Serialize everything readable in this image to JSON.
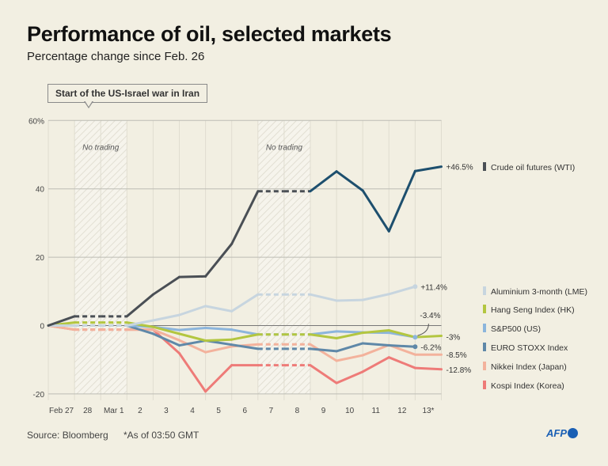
{
  "title": "Performance of oil, selected markets",
  "subtitle": "Percentage change since Feb. 26",
  "annotation": "Start of the US-Israel war in Iran",
  "source": "Source: Bloomberg",
  "footnote": "*As of 03:50 GMT",
  "logo": "AFP",
  "chart_data": {
    "type": "line",
    "title": "Performance of oil, selected markets",
    "subtitle": "Percentage change since Feb. 26",
    "x_tick_labels": [
      "Feb 27",
      "28",
      "Mar 1",
      "2",
      "3",
      "4",
      "5",
      "6",
      "7",
      "8",
      "9",
      "10",
      "11",
      "12",
      "13*"
    ],
    "ylim": [
      -20,
      60
    ],
    "y_ticks": [
      {
        "value": 60,
        "label": "60%"
      },
      {
        "value": 40,
        "label": "40"
      },
      {
        "value": 20,
        "label": "20"
      },
      {
        "value": 0,
        "label": "0"
      },
      {
        "value": -20,
        "label": "-20"
      }
    ],
    "grid": true,
    "no_trading_label": "No trading",
    "no_trading_periods": [
      [
        1,
        3
      ],
      [
        8,
        10
      ]
    ],
    "series": [
      {
        "name": "Crude oil futures (WTI)",
        "color": "#4a4f55",
        "color_after": "#1d4f6e",
        "values": [
          0,
          2.7,
          2.7,
          2.7,
          9.1,
          14.2,
          14.4,
          23.9,
          39.3,
          39.3,
          39.3,
          45.1,
          39.5,
          27.6,
          45.2,
          46.5
        ],
        "end_label": "+46.5%"
      },
      {
        "name": "Aluminium 3-month (LME)",
        "color": "#c7d5df",
        "values": [
          0,
          0,
          0,
          0,
          1.5,
          3.1,
          5.7,
          4.2,
          9.1,
          9.1,
          9.1,
          7.3,
          7.5,
          9.2,
          11.4,
          null
        ],
        "end_label": "+11.4%"
      },
      {
        "name": "Hang Seng Index (HK)",
        "color": "#b3c640",
        "values": [
          0,
          0.9,
          0.9,
          0.9,
          -0.4,
          -2.4,
          -4.4,
          -4.1,
          -2.6,
          -2.6,
          -2.6,
          -3.7,
          -2.1,
          -1.4,
          -3.4,
          -3.0
        ],
        "end_label": "-3%"
      },
      {
        "name": "S&P500 (US)",
        "color": "#8cb5dc",
        "values": [
          0,
          0,
          0,
          0,
          -0.4,
          -1.3,
          -0.7,
          -1.2,
          -2.6,
          -2.6,
          -2.6,
          -1.7,
          -2.0,
          -2.1,
          -3.4,
          null
        ],
        "end_label": "-3.4%"
      },
      {
        "name": "EURO STOXX Index",
        "color": "#5f88a8",
        "values": [
          0,
          0,
          0,
          0,
          -2.4,
          -5.8,
          -4.4,
          -5.6,
          -6.8,
          -6.8,
          -6.8,
          -7.5,
          -5.2,
          -5.8,
          -6.2,
          null
        ],
        "end_label": "-6.2%"
      },
      {
        "name": "Nikkei Index (Japan)",
        "color": "#f3b29c",
        "values": [
          0,
          -1.2,
          -1.2,
          -1.2,
          -1.2,
          -4.3,
          -7.8,
          -6.1,
          -5.5,
          -5.5,
          -5.5,
          -10.3,
          -8.7,
          -5.7,
          -8.5,
          -8.5
        ],
        "end_label": "-8.5%"
      },
      {
        "name": "Kospi Index (Korea)",
        "color": "#ee7b78",
        "values": [
          0,
          -1.2,
          -1.2,
          -1.2,
          -1.2,
          -8.1,
          -19.3,
          -11.6,
          -11.6,
          -11.6,
          -11.6,
          -16.8,
          -13.5,
          -9.3,
          -12.4,
          -12.8
        ],
        "end_label": "-12.8%"
      }
    ]
  }
}
